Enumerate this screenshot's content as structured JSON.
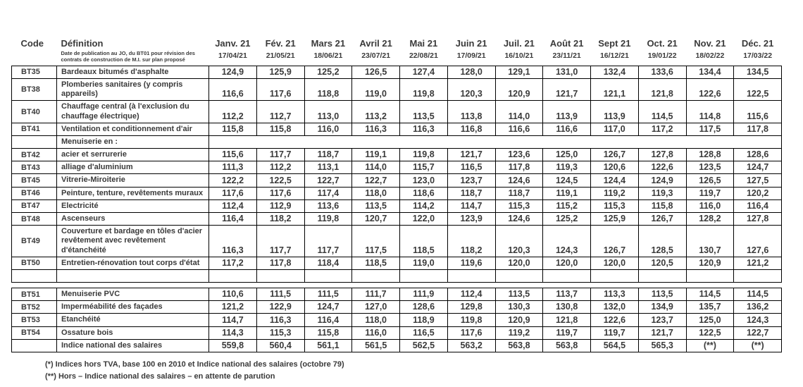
{
  "colors": {
    "border": "#000000",
    "text": "#3a3a3a",
    "background": "#ffffff"
  },
  "header": {
    "code_label": "Code",
    "definition_label": "Définition",
    "definition_note": "Date de publication au JO, du BT01 pour révision des contrats de construction de M.I. sur plan proposé",
    "months": [
      {
        "label": "Janv. 21",
        "date": "17/04/21"
      },
      {
        "label": "Fév. 21",
        "date": "21/05/21"
      },
      {
        "label": "Mars 21",
        "date": "18/06/21"
      },
      {
        "label": "Avril 21",
        "date": "23/07/21"
      },
      {
        "label": "Mai 21",
        "date": "22/08/21"
      },
      {
        "label": "Juin 21",
        "date": "17/09/21"
      },
      {
        "label": "Juil. 21",
        "date": "16/10/21"
      },
      {
        "label": "Août 21",
        "date": "23/11/21"
      },
      {
        "label": "Sept 21",
        "date": "16/12/21"
      },
      {
        "label": "Oct. 21",
        "date": "19/01/22"
      },
      {
        "label": "Nov. 21",
        "date": "18/02/22"
      },
      {
        "label": "Déc. 21",
        "date": "17/03/22"
      }
    ]
  },
  "sections": [
    {
      "rows": [
        {
          "type": "data",
          "code": "BT35",
          "definition": "Bardeaux bitumés d'asphalte",
          "values": [
            "124,9",
            "125,9",
            "125,2",
            "126,5",
            "127,4",
            "128,0",
            "129,1",
            "131,0",
            "132,4",
            "133,6",
            "134,4",
            "134,5"
          ]
        },
        {
          "type": "data",
          "code": "BT38",
          "definition": "Plomberies sanitaires (y compris appareils)",
          "values": [
            "116,6",
            "117,6",
            "118,8",
            "119,0",
            "119,8",
            "120,3",
            "120,9",
            "121,7",
            "121,1",
            "121,8",
            "122,6",
            "122,5"
          ]
        },
        {
          "type": "data",
          "code": "BT40",
          "definition": "Chauffage central (à l'exclusion du chauffage électrique)",
          "values": [
            "112,2",
            "112,7",
            "113,0",
            "113,2",
            "113,5",
            "113,8",
            "114,0",
            "113,9",
            "113,9",
            "114,5",
            "114,8",
            "115,6"
          ]
        },
        {
          "type": "data",
          "code": "BT41",
          "definition": "Ventilation et conditionnement d'air",
          "values": [
            "115,8",
            "115,8",
            "116,0",
            "116,3",
            "116,3",
            "116,8",
            "116,6",
            "116,6",
            "117,0",
            "117,2",
            "117,5",
            "117,8"
          ]
        },
        {
          "type": "section-label",
          "code": "",
          "definition": "Menuiserie en :",
          "values": []
        },
        {
          "type": "data",
          "code": "BT42",
          "definition": "acier et serrurerie",
          "values": [
            "115,6",
            "117,7",
            "118,7",
            "119,1",
            "119,8",
            "121,7",
            "123,6",
            "125,0",
            "126,7",
            "127,8",
            "128,8",
            "128,6"
          ]
        },
        {
          "type": "data",
          "code": "BT43",
          "definition": "alliage d'aluminium",
          "values": [
            "111,3",
            "112,2",
            "113,1",
            "114,0",
            "115,7",
            "116,5",
            "117,8",
            "119,3",
            "120,6",
            "122,6",
            "123,5",
            "124,7"
          ]
        },
        {
          "type": "data",
          "code": "BT45",
          "definition": "Vitrerie-Miroiterie",
          "values": [
            "122,2",
            "122,5",
            "122,7",
            "122,7",
            "123,0",
            "123,7",
            "124,6",
            "124,5",
            "124,4",
            "124,9",
            "126,5",
            "127,5"
          ]
        },
        {
          "type": "data",
          "code": "BT46",
          "definition": "Peinture, tenture, revêtements muraux",
          "values": [
            "117,6",
            "117,6",
            "117,4",
            "118,0",
            "118,6",
            "118,7",
            "118,7",
            "119,1",
            "119,2",
            "119,3",
            "119,7",
            "120,2"
          ]
        },
        {
          "type": "data",
          "code": "BT47",
          "definition": "Electricité",
          "values": [
            "112,4",
            "112,9",
            "113,6",
            "113,5",
            "114,2",
            "114,7",
            "115,3",
            "115,2",
            "115,3",
            "115,8",
            "116,0",
            "116,4"
          ]
        },
        {
          "type": "data",
          "code": "BT48",
          "definition": "Ascenseurs",
          "values": [
            "116,4",
            "118,2",
            "119,8",
            "120,7",
            "122,0",
            "123,9",
            "124,6",
            "125,2",
            "125,9",
            "126,7",
            "128,2",
            "127,8"
          ]
        },
        {
          "type": "data",
          "code": "BT49",
          "definition": "Couverture et bardage en tôles d'acier revêtement avec revêtement d'étanchéité",
          "values": [
            "116,3",
            "117,7",
            "117,7",
            "117,5",
            "118,5",
            "118,2",
            "120,3",
            "124,3",
            "126,7",
            "128,5",
            "130,7",
            "127,6"
          ]
        },
        {
          "type": "data",
          "code": "BT50",
          "definition": "Entretien-rénovation tout corps d'état",
          "values": [
            "117,2",
            "117,8",
            "118,4",
            "118,5",
            "119,0",
            "119,6",
            "120,0",
            "120,0",
            "120,0",
            "120,5",
            "120,9",
            "121,2"
          ]
        },
        {
          "type": "empty",
          "code": "",
          "definition": "",
          "values": [
            "",
            "",
            "",
            "",
            "",
            "",
            "",
            "",
            "",
            "",
            "",
            ""
          ]
        }
      ]
    },
    {
      "rows": [
        {
          "type": "data",
          "code": "BT51",
          "definition": "Menuiserie PVC",
          "values": [
            "110,6",
            "111,5",
            "111,5",
            "111,7",
            "111,9",
            "112,4",
            "113,5",
            "113,7",
            "113,3",
            "113,5",
            "114,5",
            "114,5"
          ]
        },
        {
          "type": "data",
          "code": "BT52",
          "definition": "Imperméabilité des façades",
          "values": [
            "121,2",
            "122,9",
            "124,7",
            "127,0",
            "128,6",
            "129,8",
            "130,3",
            "130,8",
            "132,0",
            "134,9",
            "135,7",
            "136,2"
          ]
        },
        {
          "type": "data",
          "code": "BT53",
          "definition": "Etanchéité",
          "values": [
            "114,7",
            "116,3",
            "116,4",
            "118,0",
            "118,9",
            "119,8",
            "120,9",
            "121,8",
            "122,6",
            "123,7",
            "125,0",
            "124,3"
          ]
        },
        {
          "type": "data",
          "code": "BT54",
          "definition": "Ossature bois",
          "values": [
            "114,3",
            "115,3",
            "115,8",
            "116,0",
            "116,5",
            "117,6",
            "119,2",
            "119,7",
            "119,7",
            "121,7",
            "122,5",
            "122,7"
          ]
        },
        {
          "type": "total",
          "code": "",
          "definition": "Indice national des salaires",
          "values": [
            "559,8",
            "560,4",
            "561,1",
            "561,5",
            "562,5",
            "563,2",
            "563,8",
            "563,8",
            "564,5",
            "565,3",
            "(**)",
            "(**)"
          ]
        }
      ]
    }
  ],
  "footnotes": [
    "(*) Indices hors TVA, base 100 en 2010 et Indice national des salaires (octobre 79)",
    "(**) Hors – Indice national des salaires – en attente de parution"
  ]
}
